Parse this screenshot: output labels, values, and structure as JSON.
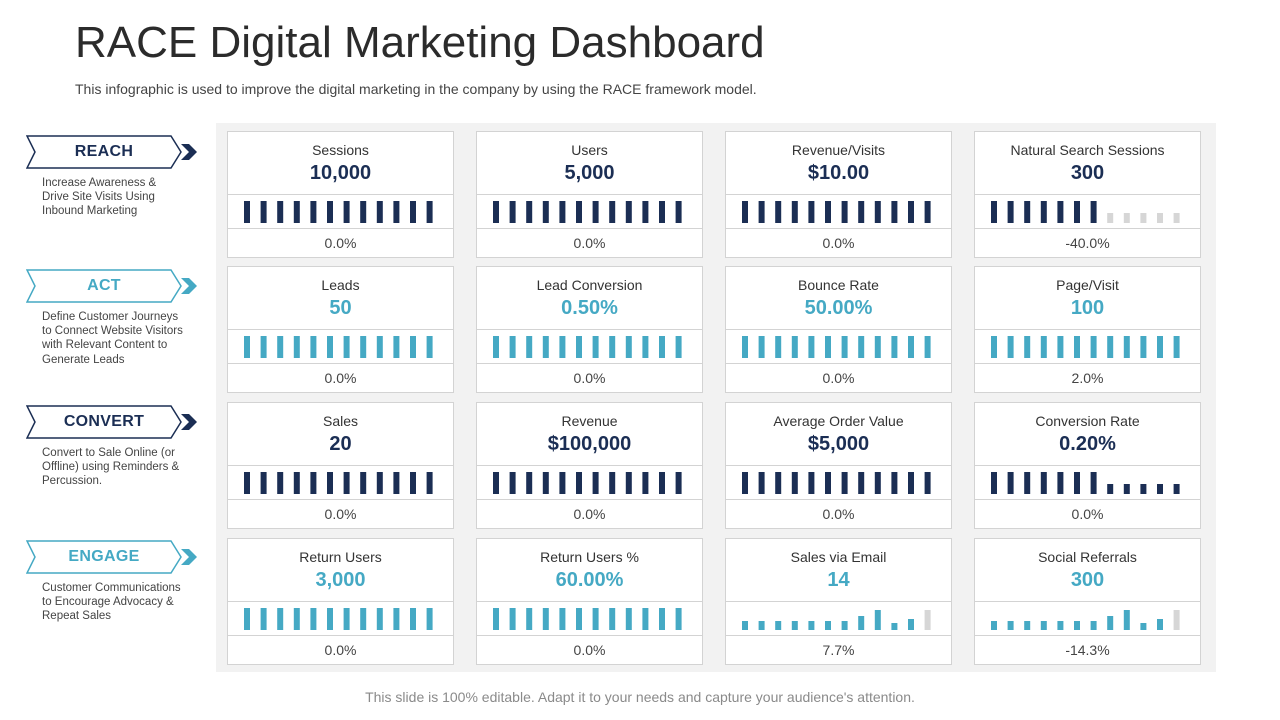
{
  "title": "RACE Digital Marketing Dashboard",
  "subtitle": "This infographic is used to improve the digital marketing in the company by using the RACE framework model.",
  "footer": "This slide is 100% editable. Adapt it to your needs and capture your audience's attention.",
  "colors": {
    "navy": "#1b2e54",
    "teal": "#45a9c4",
    "inactive": "#d6d6d6"
  },
  "stages": [
    {
      "label": "REACH",
      "theme": "navy",
      "desc_lines": [
        "Increase Awareness &",
        "Drive Site Visits Using",
        "Inbound Marketing"
      ]
    },
    {
      "label": "ACT",
      "theme": "teal",
      "desc_lines": [
        "Define Customer Journeys",
        "to Connect Website Visitors",
        "with Relevant Content to",
        "Generate Leads"
      ]
    },
    {
      "label": "CONVERT",
      "theme": "navy",
      "desc_lines": [
        "Convert to  Sale Online (or",
        "Offline) using Reminders &",
        "Percussion."
      ]
    },
    {
      "label": "ENGAGE",
      "theme": "teal",
      "desc_lines": [
        "Customer Communications",
        "to Encourage Advocacy  &",
        "Repeat Sales"
      ]
    }
  ],
  "rows": [
    {
      "theme": "navy",
      "cards": [
        {
          "name": "Sessions",
          "value": "10,000",
          "change": "0.0%",
          "bars": {
            "style": "full",
            "active": 12
          }
        },
        {
          "name": "Users",
          "value": "5,000",
          "change": "0.0%",
          "bars": {
            "style": "full",
            "active": 12
          }
        },
        {
          "name": "Revenue/Visits",
          "value": "$10.00",
          "change": "0.0%",
          "bars": {
            "style": "full",
            "active": 12
          }
        },
        {
          "name": "Natural Search Sessions",
          "value": "300",
          "change": "-40.0%",
          "bars": {
            "style": "partial-gray",
            "active": 7
          }
        }
      ]
    },
    {
      "theme": "teal",
      "cards": [
        {
          "name": "Leads",
          "value": "50",
          "change": "0.0%",
          "bars": {
            "style": "full",
            "active": 12
          }
        },
        {
          "name": "Lead Conversion",
          "value": "0.50%",
          "change": "0.0%",
          "bars": {
            "style": "full",
            "active": 12
          }
        },
        {
          "name": "Bounce Rate",
          "value": "50.00%",
          "change": "0.0%",
          "bars": {
            "style": "full",
            "active": 12
          }
        },
        {
          "name": "Page/Visit",
          "value": "100",
          "change": "2.0%",
          "bars": {
            "style": "full",
            "active": 12
          }
        }
      ]
    },
    {
      "theme": "navy",
      "cards": [
        {
          "name": "Sales",
          "value": "20",
          "change": "0.0%",
          "bars": {
            "style": "full",
            "active": 12
          }
        },
        {
          "name": "Revenue",
          "value": "$100,000",
          "change": "0.0%",
          "bars": {
            "style": "full",
            "active": 12
          }
        },
        {
          "name": "Average  Order Value",
          "value": "$5,000",
          "change": "0.0%",
          "bars": {
            "style": "full",
            "active": 12
          }
        },
        {
          "name": "Conversion Rate",
          "value": "0.20%",
          "change": "0.0%",
          "bars": {
            "style": "partial-short",
            "active": 7
          }
        }
      ]
    },
    {
      "theme": "teal",
      "cards": [
        {
          "name": "Return Users",
          "value": "3,000",
          "change": "0.0%",
          "bars": {
            "style": "full",
            "active": 12
          }
        },
        {
          "name": "Return Users %",
          "value": "60.00%",
          "change": "0.0%",
          "bars": {
            "style": "full",
            "active": 12
          }
        },
        {
          "name": "Sales via Email",
          "value": "14",
          "change": "7.7%",
          "bars": {
            "style": "sparkline",
            "levels": [
              0.42,
              0.42,
              0.42,
              0.42,
              0.42,
              0.42,
              0.42,
              0.62,
              0.92,
              0.32,
              0.48,
              0.92
            ]
          }
        },
        {
          "name": "Social Referrals",
          "value": "300",
          "change": "-14.3%",
          "bars": {
            "style": "sparkline",
            "levels": [
              0.42,
              0.42,
              0.42,
              0.42,
              0.42,
              0.42,
              0.42,
              0.62,
              0.92,
              0.32,
              0.48,
              0.92
            ]
          }
        }
      ]
    }
  ]
}
